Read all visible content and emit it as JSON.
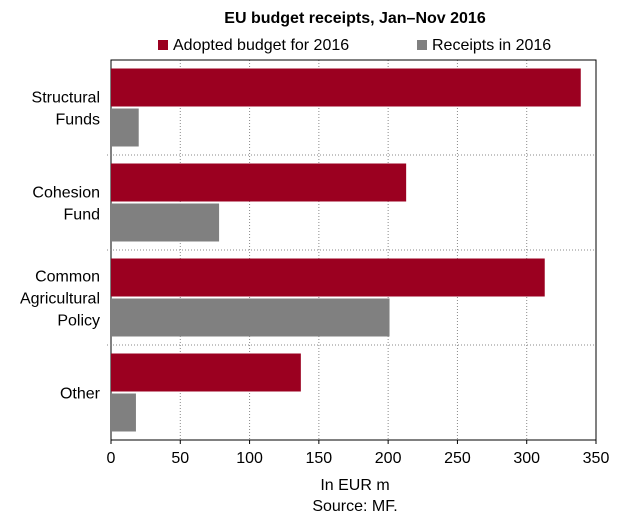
{
  "chart_data": {
    "type": "bar",
    "orientation": "horizontal",
    "title": "EU budget receipts, Jan–Nov 2016",
    "categories": [
      [
        "Structural",
        "Funds"
      ],
      [
        "Cohesion",
        "Fund"
      ],
      [
        "Common",
        "Agricultural",
        "Policy"
      ],
      [
        "Other"
      ]
    ],
    "series": [
      {
        "name": "Adopted budget for 2016",
        "color": "#9b0020",
        "values": [
          339,
          213,
          313,
          137
        ]
      },
      {
        "name": "Receipts in 2016",
        "color": "#808080",
        "values": [
          20,
          78,
          201,
          18
        ]
      }
    ],
    "xlim": [
      0,
      350
    ],
    "xticks": [
      0,
      50,
      100,
      150,
      200,
      250,
      300,
      350
    ],
    "xlabel": "In EUR m",
    "source": "Source: MF.",
    "grid": "vertical dotted",
    "legend": "top"
  }
}
